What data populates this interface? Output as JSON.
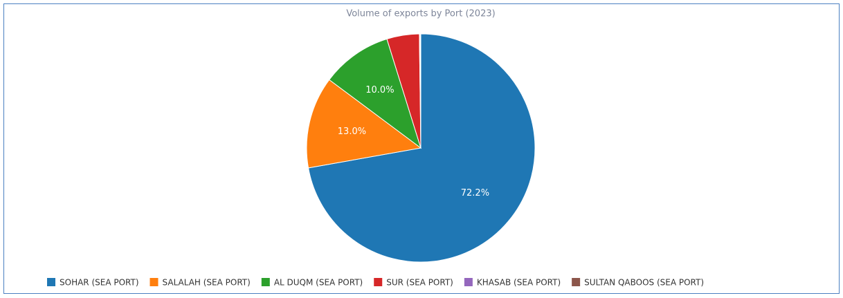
{
  "chart_data": {
    "type": "pie",
    "title": "Volume of exports by Port (2023)",
    "categories": [
      "SOHAR (SEA PORT)",
      "SALALAH (SEA PORT)",
      "AL DUQM (SEA PORT)",
      "SUR (SEA PORT)",
      "KHASAB (SEA PORT)",
      "SULTAN QABOOS (SEA PORT)"
    ],
    "values": [
      72.2,
      13.0,
      10.0,
      4.6,
      0.1,
      0.1
    ],
    "value_labels": [
      "72.2%",
      "13.0%",
      "10.0%",
      null,
      null,
      null
    ],
    "colors": [
      "#1f77b4",
      "#ff7f0e",
      "#2ca02c",
      "#d62728",
      "#9467bd",
      "#8c564b"
    ],
    "legend": "bottom"
  }
}
